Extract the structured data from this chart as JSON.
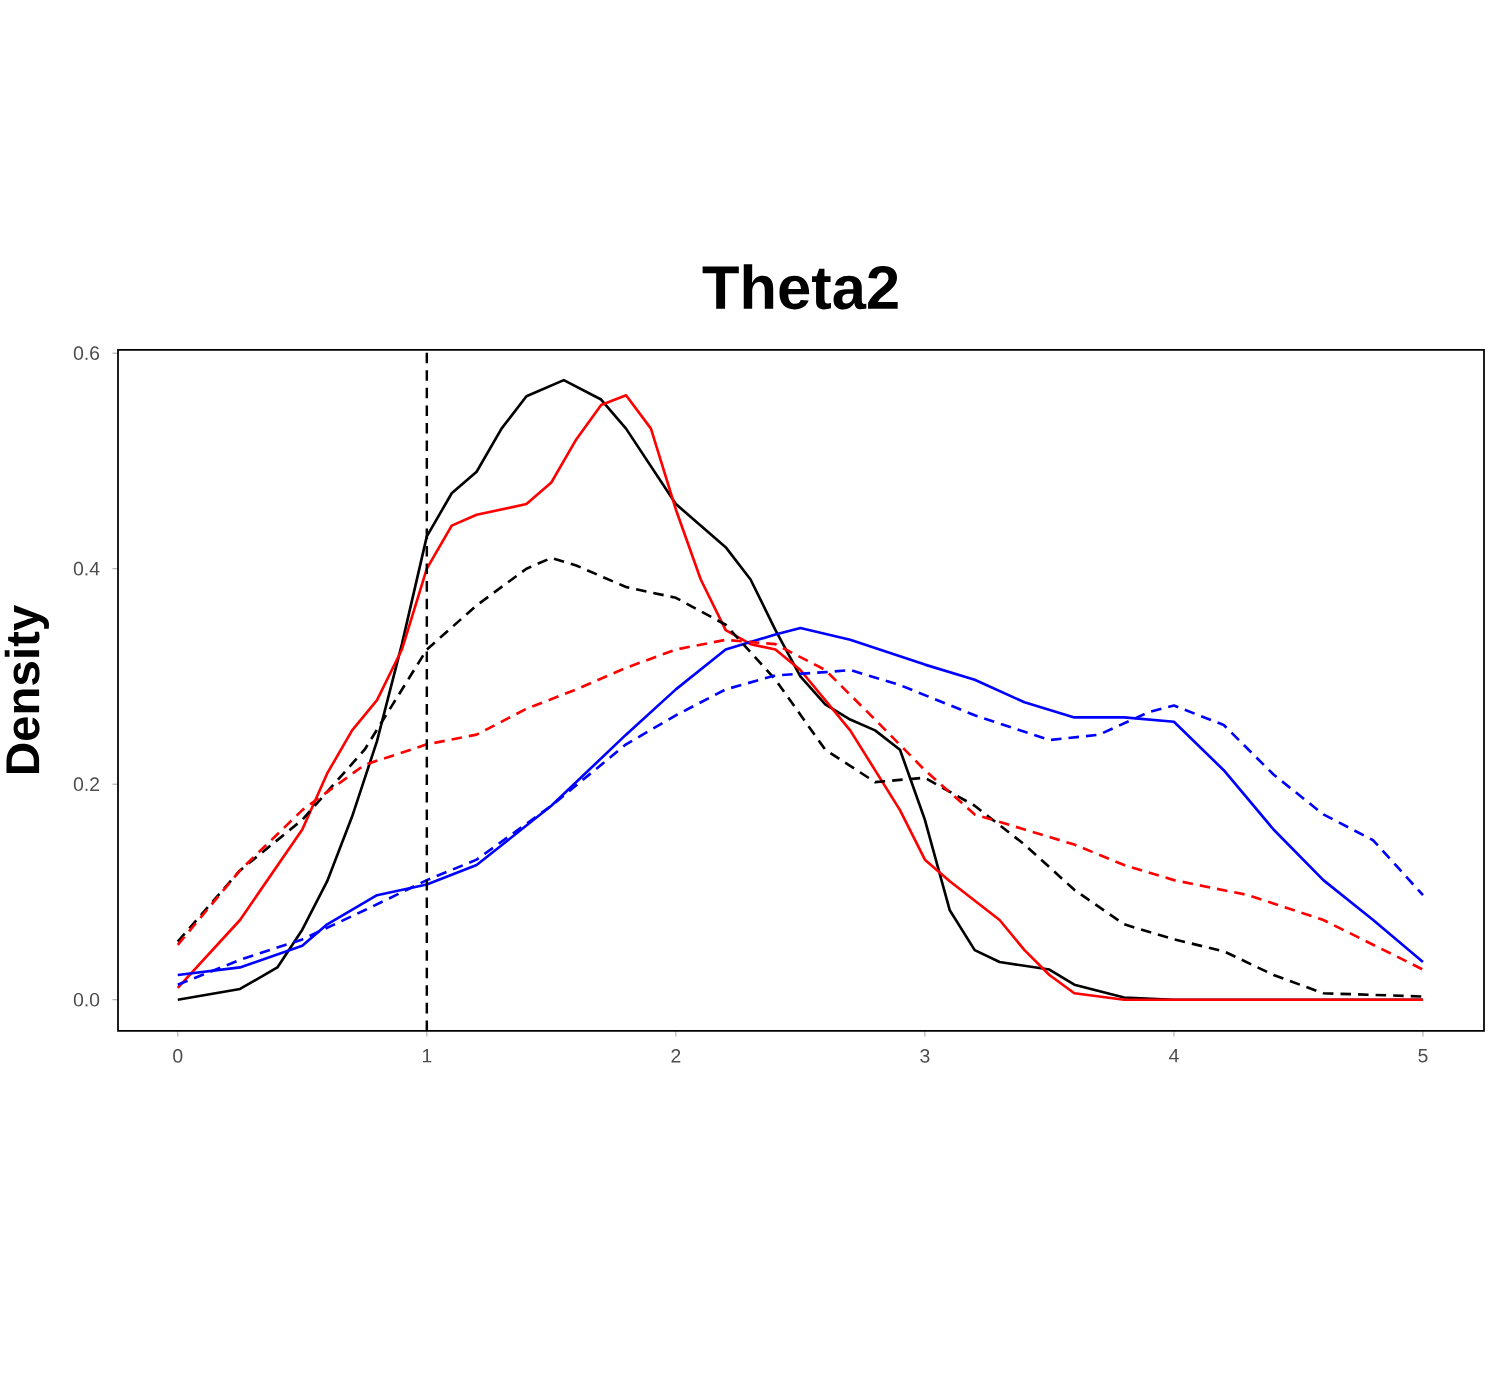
{
  "chart_data": {
    "type": "line",
    "title": "Theta2",
    "ylabel": "Density",
    "xlim": [
      -0.24,
      5.245
    ],
    "ylim": [
      -0.029,
      0.603
    ],
    "xticks": [
      0,
      1,
      2,
      3,
      4,
      5
    ],
    "yticks": [
      {
        "value": 0,
        "label": "0.0"
      },
      {
        "value": 0.2,
        "label": "0.2"
      },
      {
        "value": 0.4,
        "label": "0.4"
      },
      {
        "value": 0.6,
        "label": "0.6"
      }
    ],
    "grid": false,
    "marker": "none",
    "ref_lines": [
      {
        "axis": "x",
        "value": 1,
        "color": "#000000",
        "line_style": "dashed"
      }
    ],
    "series": [
      {
        "color": "#000000",
        "line_style": "solid",
        "x": [
          0,
          0.25,
          0.4,
          0.5,
          0.6,
          0.7,
          0.8,
          0.9,
          1.0,
          1.1,
          1.2,
          1.3,
          1.4,
          1.55,
          1.7,
          1.8,
          2.0,
          2.2,
          2.3,
          2.4,
          2.5,
          2.6,
          2.7,
          2.8,
          2.9,
          3.0,
          3.1,
          3.2,
          3.3,
          3.5,
          3.6,
          3.8,
          4.0,
          5.0
        ],
        "values": [
          0.0,
          0.01,
          0.03,
          0.065,
          0.11,
          0.17,
          0.24,
          0.33,
          0.43,
          0.47,
          0.49,
          0.53,
          0.56,
          0.575,
          0.557,
          0.53,
          0.46,
          0.42,
          0.39,
          0.343,
          0.3,
          0.274,
          0.26,
          0.25,
          0.232,
          0.167,
          0.083,
          0.046,
          0.035,
          0.028,
          0.014,
          0.002,
          0.0,
          0.0
        ]
      },
      {
        "color": "#ff0000",
        "line_style": "solid",
        "x": [
          0,
          0.25,
          0.5,
          0.6,
          0.7,
          0.8,
          0.9,
          1.0,
          1.1,
          1.2,
          1.4,
          1.5,
          1.6,
          1.7,
          1.8,
          1.9,
          2.0,
          2.1,
          2.2,
          2.3,
          2.4,
          2.5,
          2.7,
          2.9,
          3.0,
          3.1,
          3.3,
          3.4,
          3.5,
          3.6,
          3.8,
          5.0
        ],
        "values": [
          0.011,
          0.074,
          0.158,
          0.21,
          0.25,
          0.278,
          0.325,
          0.4,
          0.44,
          0.45,
          0.46,
          0.48,
          0.52,
          0.552,
          0.561,
          0.53,
          0.455,
          0.39,
          0.343,
          0.33,
          0.325,
          0.306,
          0.25,
          0.176,
          0.13,
          0.11,
          0.074,
          0.046,
          0.023,
          0.006,
          0.0,
          0.0
        ]
      },
      {
        "color": "#0000ff",
        "line_style": "solid",
        "x": [
          0,
          0.25,
          0.5,
          0.6,
          0.8,
          1.0,
          1.2,
          1.5,
          1.8,
          2.0,
          2.2,
          2.4,
          2.5,
          2.7,
          3.0,
          3.2,
          3.4,
          3.6,
          3.8,
          4.0,
          4.2,
          4.4,
          4.6,
          4.8,
          5.0
        ],
        "values": [
          0.023,
          0.03,
          0.05,
          0.07,
          0.097,
          0.107,
          0.125,
          0.18,
          0.246,
          0.288,
          0.325,
          0.339,
          0.345,
          0.334,
          0.311,
          0.297,
          0.276,
          0.262,
          0.262,
          0.258,
          0.213,
          0.158,
          0.111,
          0.074,
          0.035
        ]
      },
      {
        "color": "#000000",
        "line_style": "dashed",
        "x": [
          0,
          0.25,
          0.5,
          0.75,
          1.0,
          1.2,
          1.4,
          1.5,
          1.6,
          1.8,
          2.0,
          2.2,
          2.4,
          2.6,
          2.8,
          3.0,
          3.2,
          3.4,
          3.6,
          3.8,
          4.0,
          4.2,
          4.4,
          4.6,
          5.0
        ],
        "values": [
          0.054,
          0.12,
          0.167,
          0.232,
          0.325,
          0.366,
          0.4,
          0.41,
          0.403,
          0.383,
          0.373,
          0.348,
          0.297,
          0.232,
          0.202,
          0.206,
          0.18,
          0.144,
          0.102,
          0.07,
          0.056,
          0.045,
          0.023,
          0.006,
          0.003
        ]
      },
      {
        "color": "#ff0000",
        "line_style": "dashed",
        "x": [
          0,
          0.25,
          0.5,
          0.75,
          1.0,
          1.2,
          1.4,
          1.6,
          1.8,
          2.0,
          2.2,
          2.4,
          2.6,
          2.8,
          3.0,
          3.2,
          3.4,
          3.6,
          3.8,
          4.0,
          4.3,
          4.6,
          5.0
        ],
        "values": [
          0.051,
          0.12,
          0.176,
          0.218,
          0.237,
          0.246,
          0.27,
          0.288,
          0.308,
          0.325,
          0.334,
          0.33,
          0.306,
          0.26,
          0.213,
          0.172,
          0.158,
          0.144,
          0.125,
          0.111,
          0.097,
          0.074,
          0.028
        ]
      },
      {
        "color": "#0000ff",
        "line_style": "dashed",
        "x": [
          0,
          0.25,
          0.5,
          0.75,
          1.0,
          1.2,
          1.5,
          1.8,
          2.0,
          2.2,
          2.4,
          2.6,
          2.7,
          2.9,
          3.2,
          3.5,
          3.7,
          3.9,
          4.0,
          4.2,
          4.4,
          4.6,
          4.8,
          5.0
        ],
        "values": [
          0.014,
          0.037,
          0.056,
          0.083,
          0.111,
          0.13,
          0.18,
          0.237,
          0.264,
          0.288,
          0.301,
          0.304,
          0.306,
          0.292,
          0.264,
          0.241,
          0.246,
          0.267,
          0.273,
          0.255,
          0.209,
          0.172,
          0.148,
          0.097
        ]
      }
    ]
  }
}
